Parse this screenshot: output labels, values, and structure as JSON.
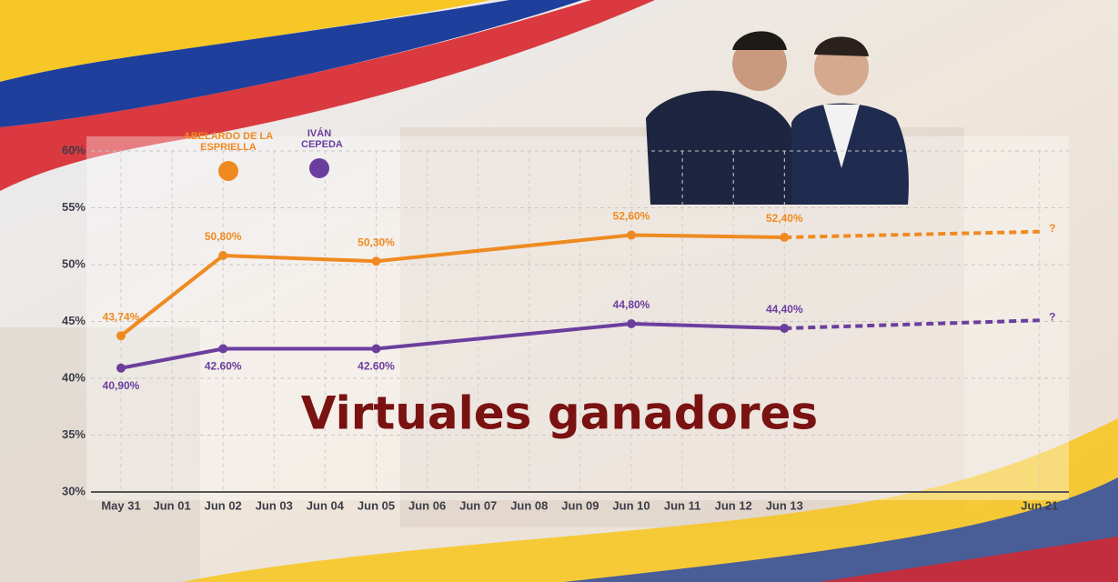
{
  "chart_data": {
    "type": "line",
    "title": "Virtuales ganadores",
    "categories": [
      "May 31",
      "Jun 01",
      "Jun 02",
      "Jun 03",
      "Jun 04",
      "Jun 05",
      "Jun 06",
      "Jun 07",
      "Jun 08",
      "Jun 09",
      "Jun 10",
      "Jun 11",
      "Jun 12",
      "Jun 13",
      null,
      null,
      null,
      null,
      "Jun 21"
    ],
    "ylim": [
      30,
      60
    ],
    "yticks": [
      {
        "value": 30,
        "label": "30%"
      },
      {
        "value": 35,
        "label": "35%"
      },
      {
        "value": 40,
        "label": "40%"
      },
      {
        "value": 45,
        "label": "45%"
      },
      {
        "value": 50,
        "label": "50%"
      },
      {
        "value": 55,
        "label": "55%"
      },
      {
        "value": 60,
        "label": "60%"
      }
    ],
    "grid": true,
    "series": [
      {
        "name": "ABELARDO DE LA ESPRIELLA",
        "color": "#ef8a21",
        "x": [
          "May 31",
          "Jun 02",
          "Jun 05",
          "Jun 10",
          "Jun 13"
        ],
        "values": [
          43.74,
          50.8,
          50.3,
          52.6,
          52.4
        ],
        "value_labels": [
          "43,74%",
          "50,80%",
          "50,30%",
          "52,60%",
          "52,40%"
        ],
        "projection": {
          "x": "Jun 21",
          "value": 52.9,
          "label": "?"
        }
      },
      {
        "name": "IVÁN CEPEDA",
        "color": "#6b3e9e",
        "x": [
          "May 31",
          "Jun 02",
          "Jun 05",
          "Jun 10",
          "Jun 13"
        ],
        "values": [
          40.9,
          42.6,
          42.6,
          44.8,
          44.4
        ],
        "value_labels": [
          "40,90%",
          "42.60%",
          "42.60%",
          "44,80%",
          "44,40%"
        ],
        "projection": {
          "x": "Jun 21",
          "value": 45.1,
          "label": "?"
        }
      }
    ]
  }
}
